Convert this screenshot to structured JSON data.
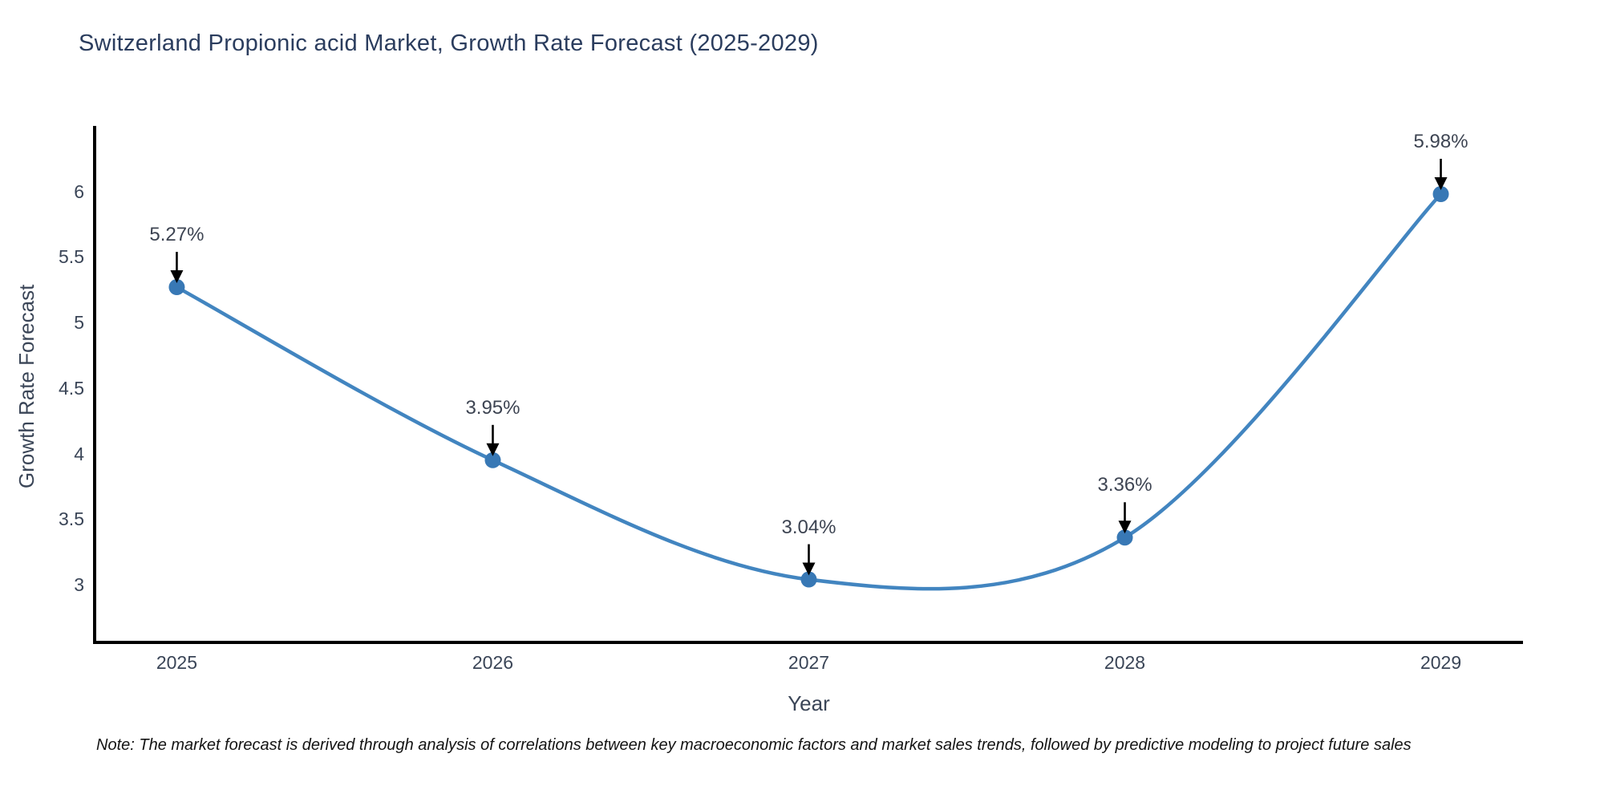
{
  "title": "Switzerland Propionic acid Market, Growth Rate Forecast (2025-2029)",
  "note": "Note: The market forecast is derived through analysis of correlations between key macroeconomic factors and market sales trends, followed by predictive modeling to project future sales",
  "chart_data": {
    "type": "line",
    "x": [
      2025,
      2026,
      2027,
      2028,
      2029
    ],
    "values": [
      5.27,
      3.95,
      3.04,
      3.36,
      5.98
    ],
    "point_labels": [
      "5.27%",
      "3.95%",
      "3.04%",
      "3.36%",
      "5.98%"
    ],
    "title": "Switzerland Propionic acid Market, Growth Rate Forecast (2025-2029)",
    "xlabel": "Year",
    "ylabel": "Growth Rate Forecast",
    "xticks": [
      2025,
      2026,
      2027,
      2028,
      2029
    ],
    "yticks": [
      3,
      3.5,
      4,
      4.5,
      5,
      5.5,
      6
    ],
    "xlim": [
      2024.74,
      2029.26
    ],
    "ylim": [
      2.56,
      6.5
    ],
    "grid": false,
    "legend_position": "none",
    "curve_style": "smooth-spline",
    "marker_style": "circle",
    "annotation_arrows": true,
    "colors": {
      "line": "#4285c0",
      "marker": "#3878b5",
      "spine": "#000000",
      "arrow": "#000000",
      "title_text": "#2b3d5e",
      "tick_text": "#3a4557",
      "annotation_text": "#3d4452",
      "note_text": "#141414",
      "background": "#ffffff"
    }
  }
}
